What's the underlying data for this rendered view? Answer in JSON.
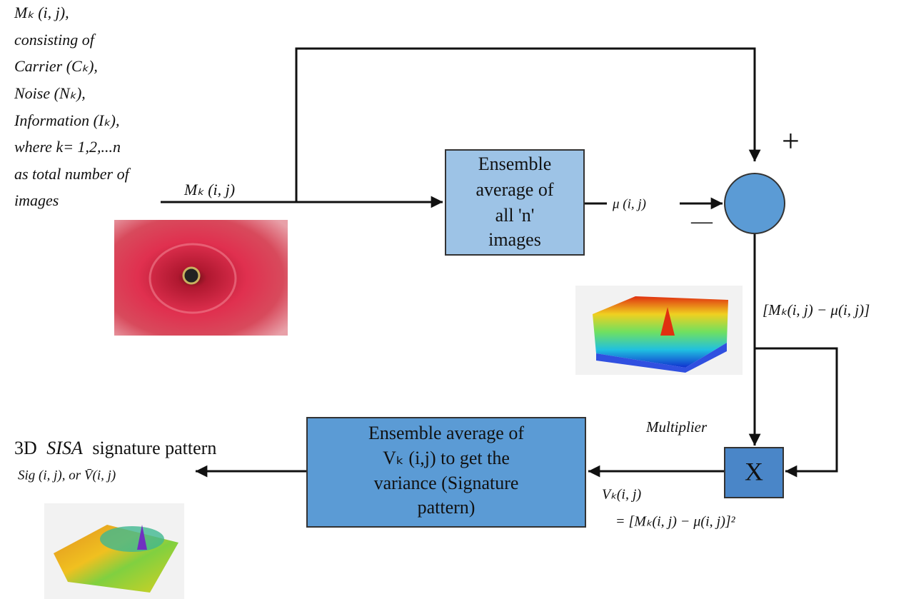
{
  "input_description": {
    "lines": [
      "Mₖ (i, j),",
      "consisting of",
      "Carrier (Cₖ),",
      "Noise (Nₖ),",
      "Information (Iₖ),",
      "where k= 1,2,...n",
      "as total number of",
      "images"
    ]
  },
  "input_label": "Mₖ (i, j)",
  "average_block": {
    "lines": [
      "Ensemble",
      "average of",
      "all 'n'",
      "images"
    ]
  },
  "mean_label": "μ (i, j)",
  "summing_node": {
    "plus": "+",
    "minus": "—"
  },
  "difference_label": "[Mₖ(i, j) − μ(i, j)]",
  "multiplier": {
    "label": "Multiplier",
    "symbol": "X"
  },
  "variance_block": {
    "lines": [
      "Ensemble average of",
      "Vₖ (i,j)  to get the",
      "variance (Signature",
      "pattern)"
    ]
  },
  "variance_label": {
    "lines": [
      "Vₖ(i, j)",
      "= [Mₖ(i, j) − μ(i, j)]²"
    ]
  },
  "output": {
    "title_parts": [
      "3D",
      "SISA",
      "signature pattern"
    ],
    "label": "Sig (i, j), or V̄(i, j)"
  }
}
